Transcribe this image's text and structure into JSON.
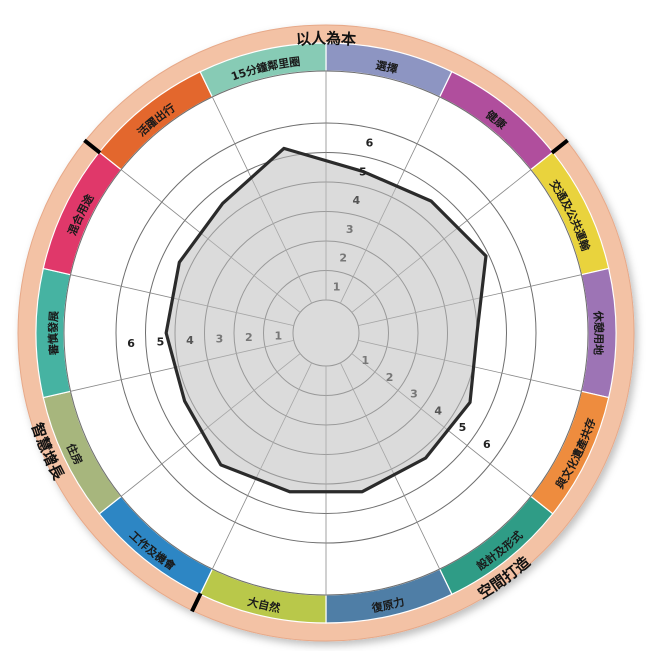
{
  "chart_data": {
    "type": "radar",
    "title": "",
    "rlim": [
      0,
      6
    ],
    "ring_ticks": [
      1,
      2,
      3,
      4,
      5,
      6
    ],
    "categories": [
      {
        "label": "選擇",
        "color": "#8d95c2"
      },
      {
        "label": "健康",
        "color": "#b04e9d"
      },
      {
        "label": "交通及公共運輸",
        "color": "#e9d33d"
      },
      {
        "label": "休憩用地",
        "color": "#9d74b5"
      },
      {
        "label": "與文化遺產共存",
        "color": "#ee8c3e"
      },
      {
        "label": "設計及形式",
        "color": "#2f9c86"
      },
      {
        "label": "復原力",
        "color": "#4f7ea6"
      },
      {
        "label": "大自然",
        "color": "#b9c84a"
      },
      {
        "label": "工作及機會",
        "color": "#2d86c4"
      },
      {
        "label": "住房",
        "color": "#a7b67d"
      },
      {
        "label": "審慎發展",
        "color": "#46b3a2"
      },
      {
        "label": "混合用途",
        "color": "#e0386a"
      },
      {
        "label": "活躍出行",
        "color": "#e3672d"
      },
      {
        "label": "15分鐘鄰里圈",
        "color": "#87cbb5"
      }
    ],
    "series": [
      {
        "values": [
          4.5,
          4.6,
          4.9,
          4.0,
          4.3,
          4.3,
          4.4,
          4.4,
          4.6,
          4.2,
          4.3,
          4.4,
          4.5,
          5.3
        ]
      }
    ],
    "groups": [
      {
        "label": "以人為本"
      },
      {
        "label": "空間打造"
      },
      {
        "label": "智慧增長"
      }
    ]
  }
}
